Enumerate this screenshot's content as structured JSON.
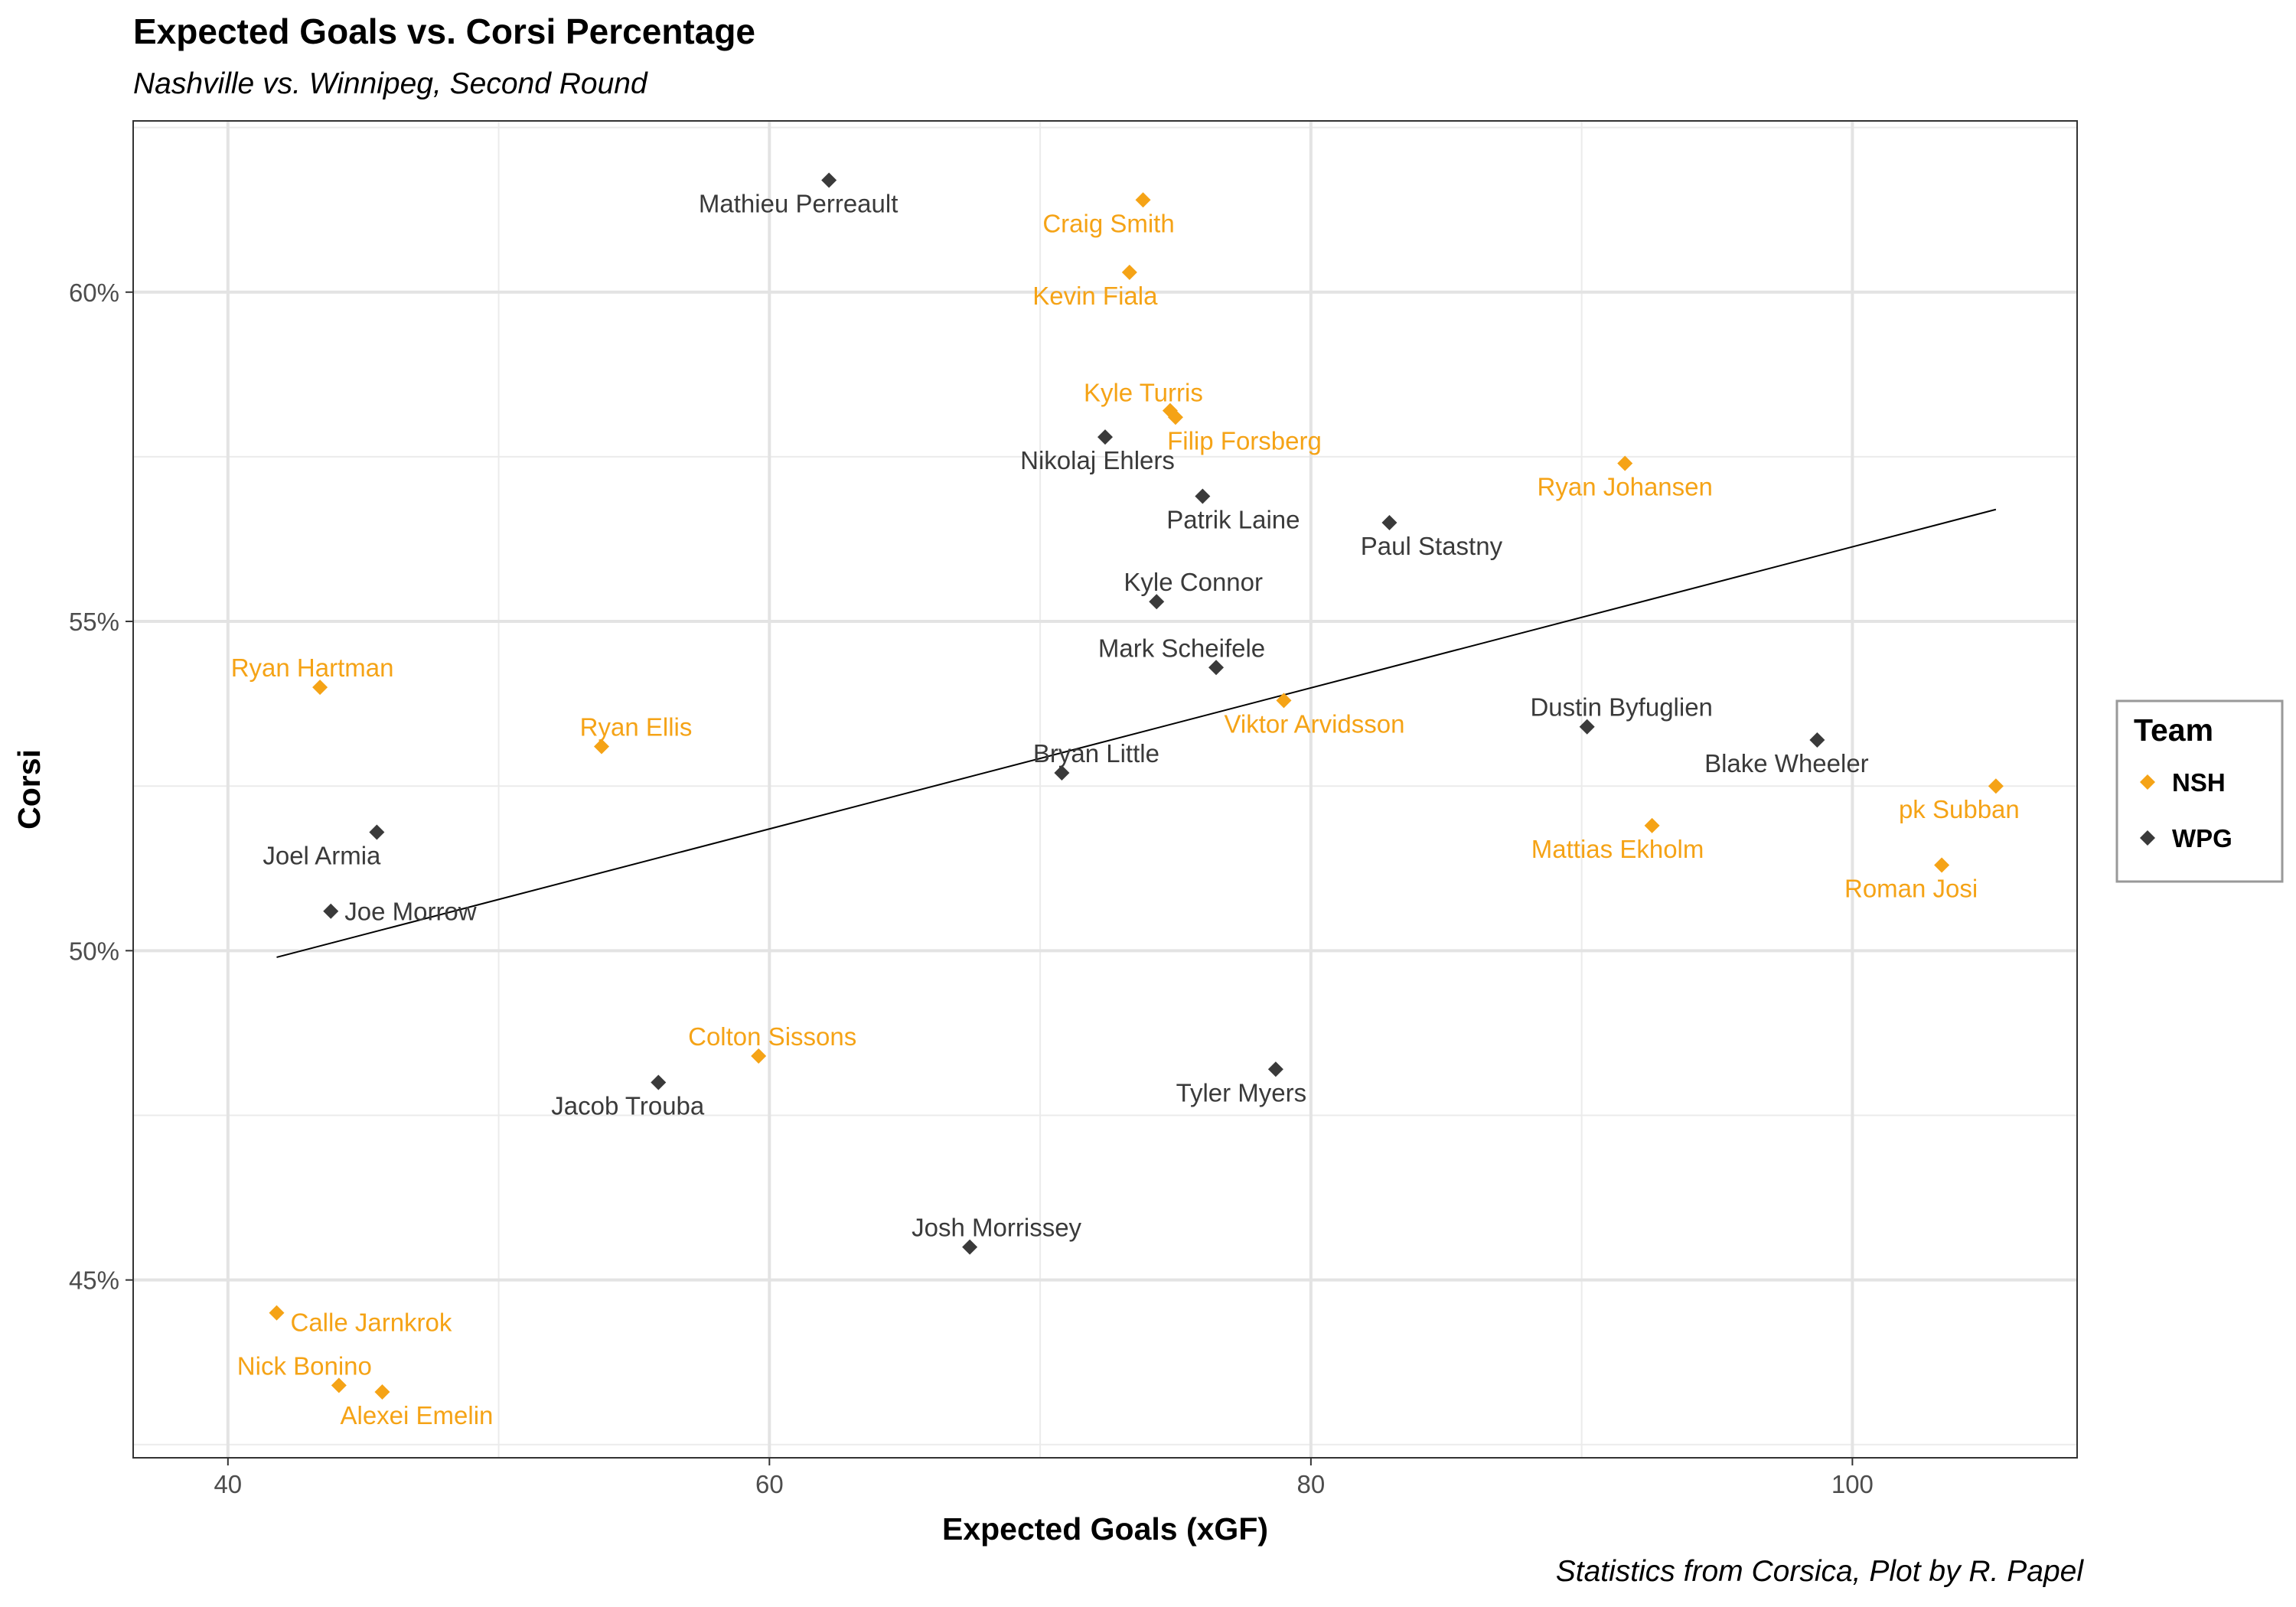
{
  "chart_data": {
    "type": "scatter",
    "title": "Expected Goals vs. Corsi Percentage",
    "subtitle": "Nashville vs. Winnipeg, Second Round",
    "caption": "Statistics from Corsica, Plot by R. Papel",
    "xlabel": "Expected Goals (xGF)",
    "ylabel": "Corsi",
    "xlim": [
      36.5,
      108.3
    ],
    "ylim": [
      42.3,
      62.6
    ],
    "x_ticks": [
      40,
      60,
      80,
      100
    ],
    "y_ticks": [
      45,
      50,
      55,
      60
    ],
    "y_tick_labels": [
      "45%",
      "50%",
      "55%",
      "60%"
    ],
    "grid": true,
    "legend": {
      "title": "Team",
      "position": "right",
      "entries": [
        "NSH",
        "WPG"
      ]
    },
    "colors": {
      "NSH": "#F5A316",
      "WPG": "#3A3A3A"
    },
    "trend_line": {
      "x": [
        41.8,
        105.3
      ],
      "y": [
        49.9,
        56.7
      ]
    },
    "points": [
      {
        "label": "Mathieu Perreault",
        "team": "WPG",
        "x": 62.2,
        "y": 61.7
      },
      {
        "label": "Craig Smith",
        "team": "NSH",
        "x": 73.8,
        "y": 61.4
      },
      {
        "label": "Kevin Fiala",
        "team": "NSH",
        "x": 73.3,
        "y": 60.3
      },
      {
        "label": "Kyle Turris",
        "team": "NSH",
        "x": 74.8,
        "y": 58.2
      },
      {
        "label": "Filip Forsberg",
        "team": "NSH",
        "x": 75.0,
        "y": 58.1
      },
      {
        "label": "Nikolaj Ehlers",
        "team": "WPG",
        "x": 72.4,
        "y": 57.8
      },
      {
        "label": "Ryan Johansen",
        "team": "NSH",
        "x": 91.6,
        "y": 57.4
      },
      {
        "label": "Patrik Laine",
        "team": "WPG",
        "x": 76.0,
        "y": 56.9
      },
      {
        "label": "Paul Stastny",
        "team": "WPG",
        "x": 82.9,
        "y": 56.5
      },
      {
        "label": "Kyle Connor",
        "team": "WPG",
        "x": 74.3,
        "y": 55.3
      },
      {
        "label": "Mark Scheifele",
        "team": "WPG",
        "x": 76.5,
        "y": 54.3
      },
      {
        "label": "Ryan Hartman",
        "team": "NSH",
        "x": 43.4,
        "y": 54.0
      },
      {
        "label": "Viktor Arvidsson",
        "team": "NSH",
        "x": 79.0,
        "y": 53.8
      },
      {
        "label": "Dustin Byfuglien",
        "team": "WPG",
        "x": 90.2,
        "y": 53.4
      },
      {
        "label": "Blake Wheeler",
        "team": "WPG",
        "x": 98.7,
        "y": 53.2
      },
      {
        "label": "Ryan Ellis",
        "team": "NSH",
        "x": 53.8,
        "y": 53.1
      },
      {
        "label": "Bryan Little",
        "team": "WPG",
        "x": 70.8,
        "y": 52.7
      },
      {
        "label": "pk Subban",
        "team": "NSH",
        "x": 105.3,
        "y": 52.5
      },
      {
        "label": "Mattias Ekholm",
        "team": "NSH",
        "x": 92.6,
        "y": 51.9
      },
      {
        "label": "Joel Armia",
        "team": "WPG",
        "x": 45.5,
        "y": 51.8
      },
      {
        "label": "Roman Josi",
        "team": "NSH",
        "x": 103.3,
        "y": 51.3
      },
      {
        "label": "Joe Morrow",
        "team": "WPG",
        "x": 43.8,
        "y": 50.6
      },
      {
        "label": "Colton Sissons",
        "team": "NSH",
        "x": 59.6,
        "y": 48.4
      },
      {
        "label": "Tyler Myers",
        "team": "WPG",
        "x": 78.7,
        "y": 48.2
      },
      {
        "label": "Jacob Trouba",
        "team": "WPG",
        "x": 55.9,
        "y": 48.0
      },
      {
        "label": "Josh Morrissey",
        "team": "WPG",
        "x": 67.4,
        "y": 45.5
      },
      {
        "label": "Calle Jarnkrok",
        "team": "NSH",
        "x": 41.8,
        "y": 44.5
      },
      {
        "label": "Nick Bonino",
        "team": "NSH",
        "x": 44.1,
        "y": 43.4
      },
      {
        "label": "Alexei Emelin",
        "team": "NSH",
        "x": 45.7,
        "y": 43.3
      }
    ]
  }
}
